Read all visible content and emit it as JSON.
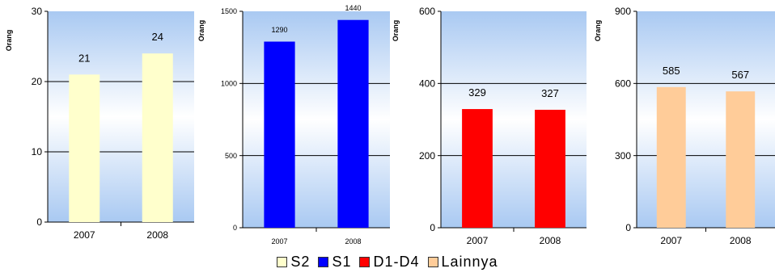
{
  "chart_data": [
    {
      "type": "bar",
      "categories": [
        "2007",
        "2008"
      ],
      "series": [
        {
          "name": "S2",
          "values": [
            21,
            24
          ]
        }
      ],
      "ylabel": "Orang",
      "ylim": [
        0,
        30
      ],
      "yticks": [
        0,
        10,
        20,
        30
      ],
      "bar_color": "#FFFFCC",
      "grid": true
    },
    {
      "type": "bar",
      "categories": [
        "2007",
        "2008"
      ],
      "series": [
        {
          "name": "S1",
          "values": [
            1290,
            1440
          ]
        }
      ],
      "ylabel": "Orang",
      "ylim": [
        0,
        1500
      ],
      "yticks": [
        0,
        500,
        1000,
        1500
      ],
      "bar_color": "#0000FF",
      "grid": true
    },
    {
      "type": "bar",
      "categories": [
        "2007",
        "2008"
      ],
      "series": [
        {
          "name": "D1-D4",
          "values": [
            329,
            327
          ]
        }
      ],
      "ylabel": "Orang",
      "ylim": [
        0,
        600
      ],
      "yticks": [
        0,
        200,
        400,
        600
      ],
      "bar_color": "#FF0000",
      "grid": true
    },
    {
      "type": "bar",
      "categories": [
        "2007",
        "2008"
      ],
      "series": [
        {
          "name": "Lainnya",
          "values": [
            585,
            567
          ]
        }
      ],
      "ylabel": "Orang",
      "ylim": [
        0,
        900
      ],
      "yticks": [
        0,
        300,
        600,
        900
      ],
      "bar_color": "#FFCC99",
      "grid": true
    }
  ],
  "legend": {
    "placement": "bottom",
    "items": [
      {
        "label": "S2",
        "color": "#FFFFCC"
      },
      {
        "label": "S1",
        "color": "#0000FF"
      },
      {
        "label": "D1-D4",
        "color": "#FF0000"
      },
      {
        "label": "Lainnya",
        "color": "#FFCC99"
      }
    ]
  }
}
